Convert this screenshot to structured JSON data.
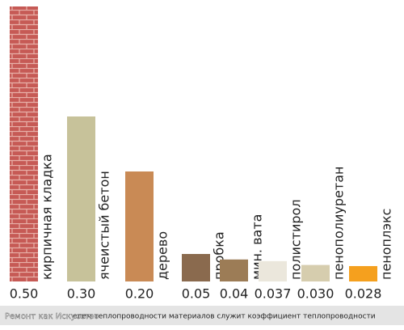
{
  "chart_data": {
    "type": "bar",
    "categories": [
      "кирпичная кладка",
      "ячеистый бетон",
      "дерево",
      "пробка",
      "мин. вата",
      "полистирол",
      "пенополиуретан",
      "пеноплэкс"
    ],
    "values": [
      0.5,
      0.3,
      0.2,
      0.05,
      0.04,
      0.037,
      0.03,
      0.028
    ],
    "value_labels": [
      "0.50",
      "0.30",
      "0.20",
      "0.05",
      "0.04",
      "0.037",
      "0.030",
      "0.028"
    ],
    "colors": [
      "#c65a55",
      "#c7c29a",
      "#c98a55",
      "#8a6a4e",
      "#9c7c56",
      "#ebe7dc",
      "#d6cdae",
      "#f5a01e"
    ],
    "caption": "елем теплопроводности материалов служит коэффициент теплопроводности",
    "watermark": "Ремонт как Искусство"
  }
}
